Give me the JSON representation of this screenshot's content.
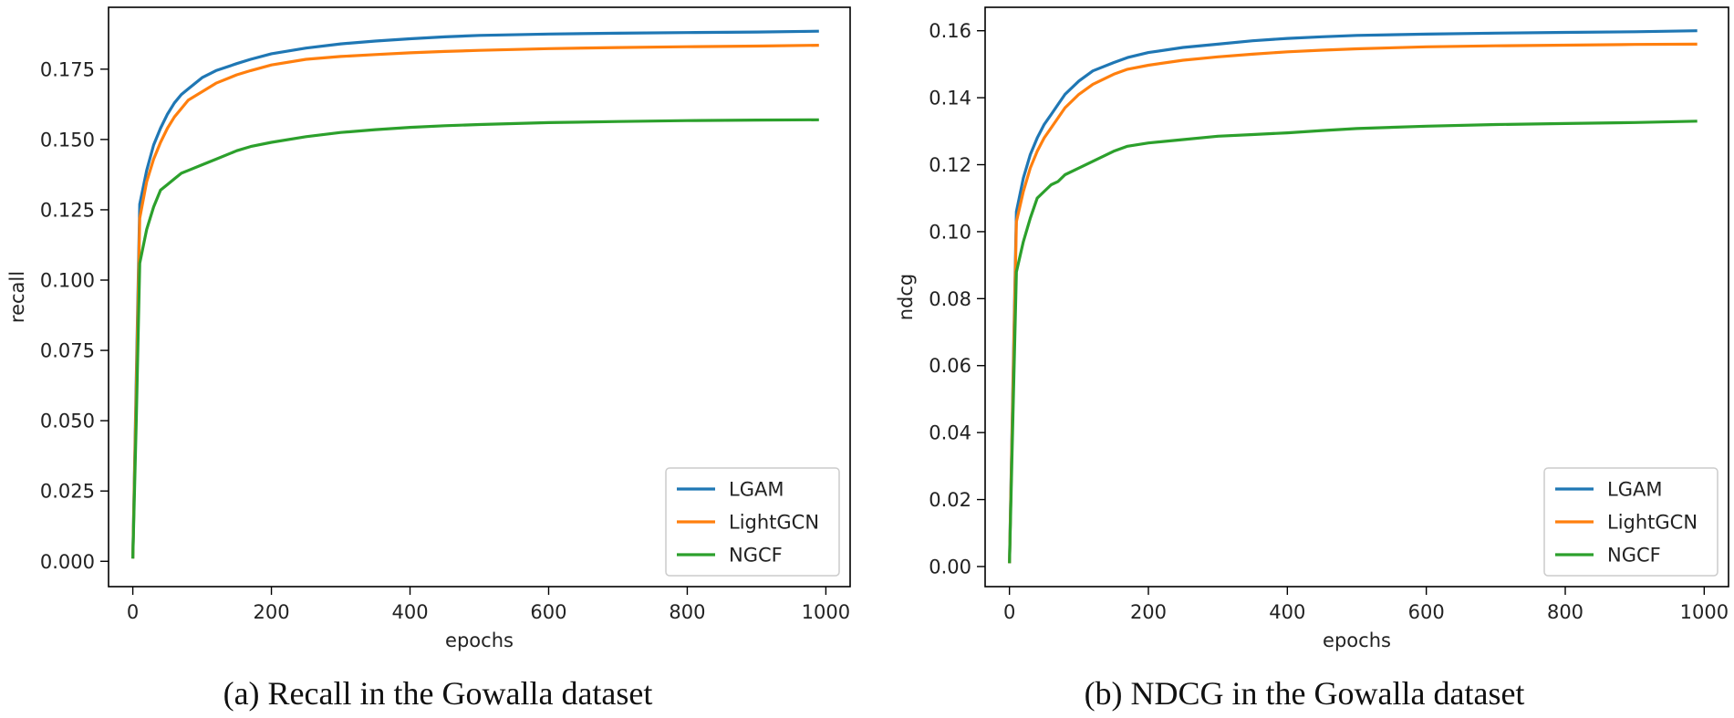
{
  "chart_data": [
    {
      "type": "line",
      "title": "",
      "xlabel": "epochs",
      "ylabel": "recall",
      "xlim": [
        -35,
        1035
      ],
      "ylim": [
        -0.009,
        0.197
      ],
      "xticks": [
        0,
        200,
        400,
        600,
        800,
        1000
      ],
      "xtick_labels": [
        "0",
        "200",
        "400",
        "600",
        "800",
        "1000"
      ],
      "yticks": [
        0,
        0.025,
        0.05,
        0.075,
        0.1,
        0.125,
        0.15,
        0.175
      ],
      "ytick_labels": [
        "0.000",
        "0.025",
        "0.050",
        "0.075",
        "0.100",
        "0.125",
        "0.150",
        "0.175"
      ],
      "grid": false,
      "legend_position": "lower-right",
      "x": [
        0,
        5,
        10,
        20,
        30,
        40,
        50,
        60,
        70,
        80,
        100,
        120,
        150,
        170,
        200,
        250,
        300,
        350,
        400,
        450,
        500,
        600,
        700,
        800,
        900,
        990
      ],
      "series": [
        {
          "name": "LGAM",
          "color": "#1f77b4",
          "values": [
            0.001,
            0.065,
            0.127,
            0.139,
            0.148,
            0.154,
            0.159,
            0.163,
            0.166,
            0.168,
            0.172,
            0.1745,
            0.177,
            0.1785,
            0.1805,
            0.1825,
            0.184,
            0.185,
            0.1858,
            0.1865,
            0.187,
            0.1875,
            0.1878,
            0.188,
            0.1882,
            0.1885
          ]
        },
        {
          "name": "LightGCN",
          "color": "#ff7f0e",
          "values": [
            0.001,
            0.06,
            0.122,
            0.135,
            0.143,
            0.149,
            0.154,
            0.158,
            0.161,
            0.164,
            0.167,
            0.17,
            0.173,
            0.1745,
            0.1765,
            0.1785,
            0.1795,
            0.1802,
            0.1808,
            0.1813,
            0.1817,
            0.1823,
            0.1827,
            0.183,
            0.1832,
            0.1835
          ]
        },
        {
          "name": "NGCF",
          "color": "#2ca02c",
          "values": [
            0.001,
            0.05,
            0.106,
            0.118,
            0.126,
            0.132,
            0.134,
            0.136,
            0.138,
            0.139,
            0.141,
            0.143,
            0.146,
            0.1475,
            0.149,
            0.151,
            0.1525,
            0.1535,
            0.1543,
            0.1549,
            0.1553,
            0.156,
            0.1564,
            0.1567,
            0.1569,
            0.157
          ]
        }
      ]
    },
    {
      "type": "line",
      "title": "",
      "xlabel": "epochs",
      "ylabel": "ndcg",
      "xlim": [
        -35,
        1035
      ],
      "ylim": [
        -0.006,
        0.167
      ],
      "xticks": [
        0,
        200,
        400,
        600,
        800,
        1000
      ],
      "xtick_labels": [
        "0",
        "200",
        "400",
        "600",
        "800",
        "1000"
      ],
      "yticks": [
        0,
        0.02,
        0.04,
        0.06,
        0.08,
        0.1,
        0.12,
        0.14,
        0.16
      ],
      "ytick_labels": [
        "0.00",
        "0.02",
        "0.04",
        "0.06",
        "0.08",
        "0.10",
        "0.12",
        "0.14",
        "0.16"
      ],
      "grid": false,
      "legend_position": "lower-right",
      "x": [
        0,
        5,
        10,
        20,
        30,
        40,
        50,
        60,
        70,
        80,
        100,
        120,
        150,
        170,
        200,
        250,
        300,
        350,
        400,
        450,
        500,
        600,
        700,
        800,
        900,
        990
      ],
      "series": [
        {
          "name": "LGAM",
          "color": "#1f77b4",
          "values": [
            0.001,
            0.055,
            0.106,
            0.116,
            0.123,
            0.128,
            0.132,
            0.135,
            0.138,
            0.141,
            0.145,
            0.148,
            0.1505,
            0.152,
            0.1535,
            0.155,
            0.156,
            0.157,
            0.1577,
            0.1582,
            0.1586,
            0.159,
            0.1593,
            0.1595,
            0.1597,
            0.16
          ]
        },
        {
          "name": "LightGCN",
          "color": "#ff7f0e",
          "values": [
            0.001,
            0.052,
            0.103,
            0.112,
            0.119,
            0.124,
            0.128,
            0.131,
            0.134,
            0.137,
            0.141,
            0.144,
            0.147,
            0.1485,
            0.1497,
            0.1512,
            0.1522,
            0.153,
            0.1537,
            0.1542,
            0.1546,
            0.1552,
            0.1555,
            0.1557,
            0.1559,
            0.156
          ]
        },
        {
          "name": "NGCF",
          "color": "#2ca02c",
          "values": [
            0.001,
            0.045,
            0.088,
            0.097,
            0.104,
            0.11,
            0.112,
            0.114,
            0.115,
            0.117,
            0.119,
            0.121,
            0.124,
            0.1255,
            0.1265,
            0.1275,
            0.1285,
            0.129,
            0.1295,
            0.1302,
            0.1308,
            0.1315,
            0.132,
            0.1323,
            0.1326,
            0.133
          ]
        }
      ]
    }
  ],
  "captions": {
    "a": "(a) Recall in the Gowalla dataset",
    "b": "(b) NDCG in the Gowalla dataset"
  }
}
